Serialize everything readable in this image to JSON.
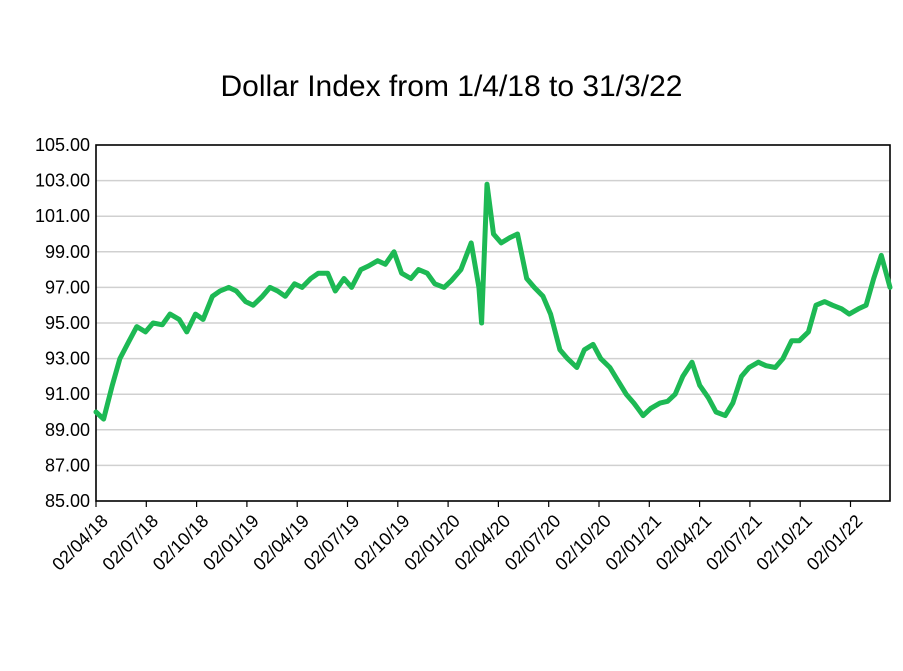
{
  "chart_data": {
    "type": "line",
    "title": "Dollar Index from 1/4/18 to 31/3/22",
    "xlabel": "",
    "ylabel": "",
    "ylim": [
      85,
      105
    ],
    "y_ticks": [
      "85.00",
      "87.00",
      "89.00",
      "91.00",
      "93.00",
      "95.00",
      "97.00",
      "99.00",
      "101.00",
      "103.00",
      "105.00"
    ],
    "x_ticks": [
      "02/04/18",
      "02/07/18",
      "02/10/18",
      "02/01/19",
      "02/04/19",
      "02/07/19",
      "02/10/19",
      "02/01/20",
      "02/04/20",
      "02/07/20",
      "02/10/20",
      "02/01/21",
      "02/04/21",
      "02/07/21",
      "02/10/21",
      "02/01/22"
    ],
    "grid": "horizontal",
    "line_color": "#1DB954",
    "series": [
      {
        "x": [
          "2018-04-01",
          "2018-04-15",
          "2018-05-01",
          "2018-05-15",
          "2018-06-01",
          "2018-06-15",
          "2018-07-01",
          "2018-07-15",
          "2018-08-01",
          "2018-08-15",
          "2018-09-01",
          "2018-09-15",
          "2018-10-01",
          "2018-10-15",
          "2018-11-01",
          "2018-11-15",
          "2018-12-01",
          "2018-12-15",
          "2019-01-01",
          "2019-01-15",
          "2019-02-01",
          "2019-02-15",
          "2019-03-01",
          "2019-03-15",
          "2019-04-01",
          "2019-04-15",
          "2019-05-01",
          "2019-05-15",
          "2019-06-01",
          "2019-06-15",
          "2019-07-01",
          "2019-07-15",
          "2019-08-01",
          "2019-08-15",
          "2019-09-01",
          "2019-09-15",
          "2019-10-01",
          "2019-10-15",
          "2019-11-01",
          "2019-11-15",
          "2019-12-01",
          "2019-12-15",
          "2020-01-01",
          "2020-01-15",
          "2020-02-01",
          "2020-02-20",
          "2020-03-05",
          "2020-03-10",
          "2020-03-20",
          "2020-04-01",
          "2020-04-15",
          "2020-05-01",
          "2020-05-15",
          "2020-06-01",
          "2020-06-15",
          "2020-07-01",
          "2020-07-15",
          "2020-08-01",
          "2020-08-15",
          "2020-09-01",
          "2020-09-15",
          "2020-10-01",
          "2020-10-15",
          "2020-11-01",
          "2020-11-15",
          "2020-12-01",
          "2020-12-15",
          "2021-01-01",
          "2021-01-15",
          "2021-02-01",
          "2021-02-15",
          "2021-03-01",
          "2021-03-15",
          "2021-04-01",
          "2021-04-15",
          "2021-05-01",
          "2021-05-15",
          "2021-06-01",
          "2021-06-15",
          "2021-07-01",
          "2021-07-15",
          "2021-08-01",
          "2021-08-15",
          "2021-09-01",
          "2021-09-15",
          "2021-10-01",
          "2021-10-15",
          "2021-11-01",
          "2021-11-15",
          "2021-12-01",
          "2021-12-15",
          "2022-01-01",
          "2022-01-15",
          "2022-02-01",
          "2022-02-15",
          "2022-03-01",
          "2022-03-15",
          "2022-03-31"
        ],
        "values": [
          90.0,
          89.6,
          91.5,
          93.0,
          94.0,
          94.8,
          94.5,
          95.0,
          94.9,
          95.5,
          95.2,
          94.5,
          95.5,
          95.2,
          96.5,
          96.8,
          97.0,
          96.8,
          96.2,
          96.0,
          96.5,
          97.0,
          96.8,
          96.5,
          97.2,
          97.0,
          97.5,
          97.8,
          97.8,
          96.8,
          97.5,
          97.0,
          98.0,
          98.2,
          98.5,
          98.3,
          99.0,
          97.8,
          97.5,
          98.0,
          97.8,
          97.2,
          97.0,
          97.4,
          98.0,
          99.5,
          97.0,
          95.0,
          102.8,
          100.0,
          99.5,
          99.8,
          100.0,
          97.5,
          97.0,
          96.5,
          95.5,
          93.5,
          93.0,
          92.5,
          93.5,
          93.8,
          93.0,
          92.5,
          91.8,
          91.0,
          90.5,
          89.8,
          90.2,
          90.5,
          90.6,
          91.0,
          92.0,
          92.8,
          91.5,
          90.8,
          90.0,
          89.8,
          90.5,
          92.0,
          92.5,
          92.8,
          92.6,
          92.5,
          93.0,
          94.0,
          94.0,
          94.5,
          96.0,
          96.2,
          96.0,
          95.8,
          95.5,
          95.8,
          96.0,
          97.5,
          98.8,
          97.0
        ]
      }
    ]
  }
}
